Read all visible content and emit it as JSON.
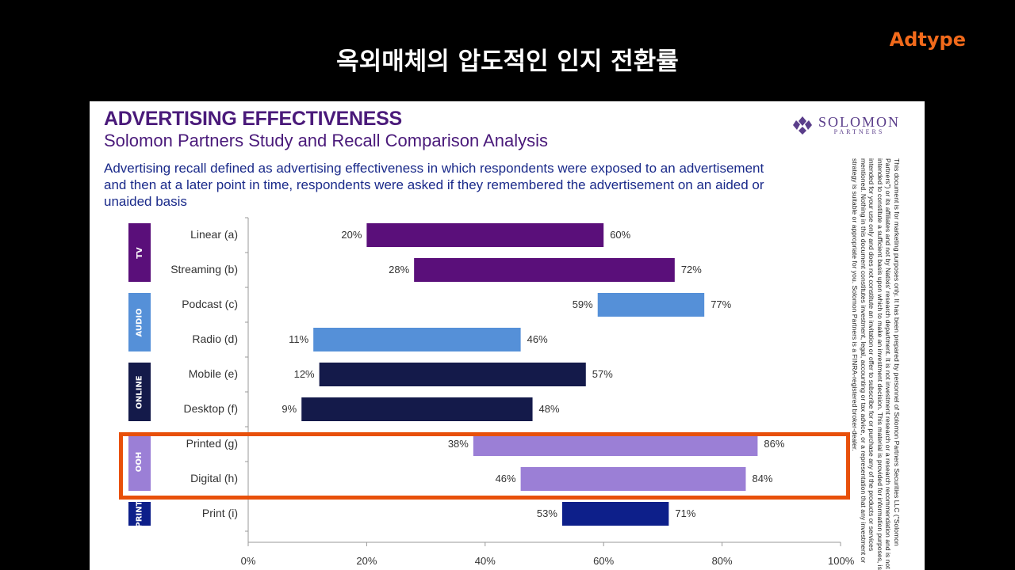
{
  "slide_title": "옥외매체의 압도적인 인지 전환률",
  "brand": "Adtype",
  "logo": {
    "name": "SOLOMON",
    "sub": "PARTNERS"
  },
  "title": "ADVERTISING EFFECTIVENESS",
  "subtitle": "Solomon Partners Study and Recall Comparison Analysis",
  "description": "Advertising recall defined as advertising effectiveness in which respondents were exposed to an advertisement and then at a later point in time, respondents were asked if they remembered the advertisement on an aided or unaided basis",
  "disclaimer": "This document is for marketing purposes only. It has been prepared by personnel of Solomon Partners Securities LLC (\"Solomon Partners\") or its affiliates and not by Natixis' research department. It is not investment research or a research recommendation and is not intended to constitute a sufficient basis upon which to make an investment decision. This material is provided for information purposes, is intended for your use only and does not constitute an invitation or offer to subscribe for or purchase any of the products or services mentioned. Nothing in this document constitutes investment, legal, accounting or tax advice, or a representation that any investment or strategy is suitable or appropriate for you. Solomon Partners is a FINRA-registered broker-dealer.",
  "chart_data": {
    "type": "bar",
    "orientation": "horizontal-range",
    "categories": [
      "Linear (a)",
      "Streaming (b)",
      "Podcast (c)",
      "Radio (d)",
      "Mobile (e)",
      "Desktop (f)",
      "Printed (g)",
      "Digital (h)",
      "Print (i)"
    ],
    "groups": [
      {
        "name": "TV",
        "rows": [
          0,
          1
        ],
        "color": "#5a0f7a"
      },
      {
        "name": "AUDIO",
        "rows": [
          2,
          3
        ],
        "color": "#5590d8"
      },
      {
        "name": "ONLINE",
        "rows": [
          4,
          5
        ],
        "color": "#141a4a"
      },
      {
        "name": "OOH",
        "rows": [
          6,
          7
        ],
        "color": "#9b7fd6"
      },
      {
        "name": "PRINT",
        "rows": [
          8
        ],
        "color": "#0d1f8a"
      }
    ],
    "low": [
      20,
      28,
      59,
      11,
      12,
      9,
      38,
      46,
      53
    ],
    "high": [
      60,
      72,
      77,
      46,
      57,
      48,
      86,
      84,
      71
    ],
    "low_labels": [
      "20%",
      "28%",
      "59%",
      "11%",
      "12%",
      "9%",
      "38%",
      "46%",
      "53%"
    ],
    "high_labels": [
      "60%",
      "72%",
      "77%",
      "46%",
      "57%",
      "48%",
      "86%",
      "84%",
      "71%"
    ],
    "xlim": [
      0,
      100
    ],
    "xticks": [
      "0%",
      "20%",
      "40%",
      "60%",
      "80%",
      "100%"
    ],
    "highlight": "OOH",
    "highlight_color": "#e8500a",
    "grid": false
  }
}
